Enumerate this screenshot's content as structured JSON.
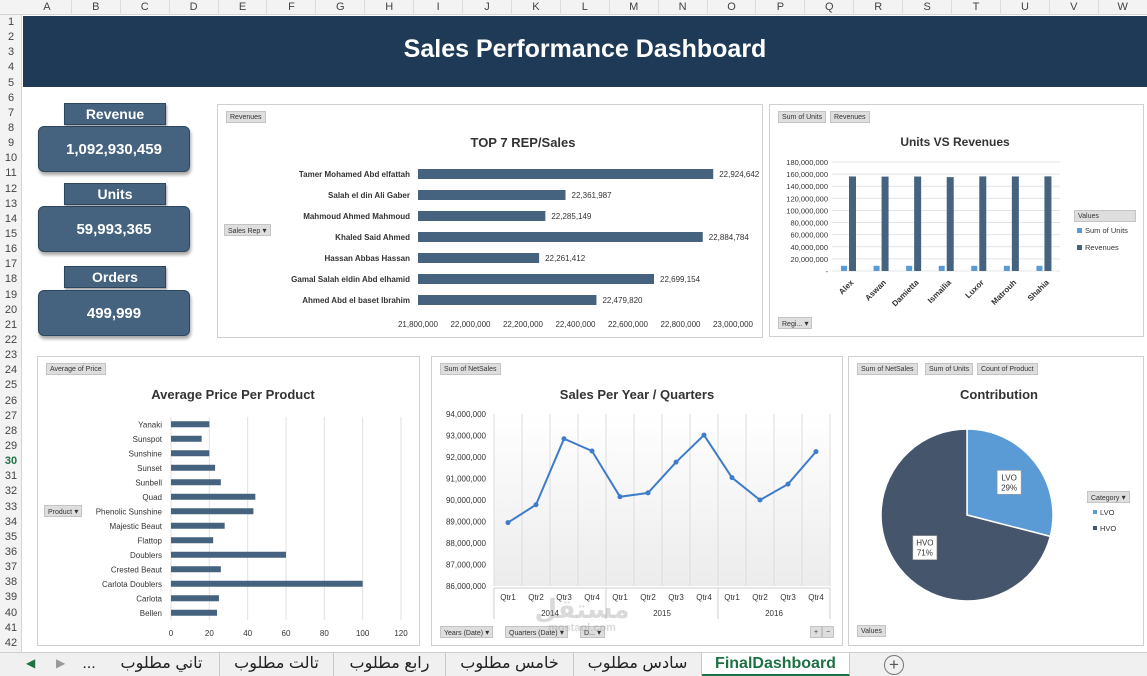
{
  "sheet": {
    "columns": [
      "A",
      "B",
      "C",
      "D",
      "E",
      "F",
      "G",
      "H",
      "I",
      "J",
      "K",
      "L",
      "M",
      "N",
      "O",
      "P",
      "Q",
      "R",
      "S",
      "T",
      "U",
      "V",
      "W"
    ],
    "rows": [
      1,
      2,
      3,
      4,
      5,
      6,
      7,
      8,
      9,
      10,
      11,
      12,
      13,
      14,
      15,
      16,
      17,
      18,
      19,
      20,
      21,
      22,
      23,
      24,
      25,
      26,
      27,
      28,
      29,
      30,
      31,
      32,
      33,
      34,
      35,
      36,
      37,
      38,
      39,
      40,
      41,
      42
    ],
    "selected_row": 30
  },
  "dashboard": {
    "title": "Sales Performance Dashboard",
    "kpis": [
      {
        "label": "Revenue",
        "value": "1,092,930,459"
      },
      {
        "label": "Units",
        "value": "59,993,365"
      },
      {
        "label": "Orders",
        "value": "499,999"
      }
    ]
  },
  "top_rep": {
    "pivot_value_btn": "Revenues",
    "pivot_axis_btn": "Sales Rep",
    "title": "TOP 7 REP/Sales",
    "chart_data": {
      "type": "bar",
      "orientation": "horizontal",
      "title": "TOP 7 REP/Sales",
      "categories": [
        "Tamer Mohamed Abd elfattah",
        "Salah el din Ali Gaber",
        "Mahmoud Ahmed Mahmoud",
        "Khaled Said Ahmed",
        "Hassan Abbas Hassan",
        "Gamal Salah eldin Abd elhamid",
        "Ahmed Abd el baset Ibrahim"
      ],
      "values": [
        22924642,
        22361987,
        22285149,
        22884784,
        22261412,
        22699154,
        22479820
      ],
      "value_labels": [
        "22,924,642",
        "22,361,987",
        "22,285,149",
        "22,884,784",
        "22,261,412",
        "22,699,154",
        "22,479,820"
      ],
      "xlim": [
        21800000,
        23000000
      ],
      "x_ticks": [
        "21,800,000",
        "22,000,000",
        "22,200,000",
        "22,400,000",
        "22,600,000",
        "22,800,000",
        "23,000,000"
      ],
      "color": "#45637f"
    }
  },
  "units_rev": {
    "pivot_btns": [
      "Sum of Units",
      "Revenues"
    ],
    "pivot_axis_btn": "Regi...",
    "title": "Units VS Revenues",
    "legend_title": "Values",
    "chart_data": {
      "type": "bar",
      "title": "Units VS Revenues",
      "categories": [
        "Alex",
        "Aswan",
        "Damietta",
        "Ismailia",
        "Luxor",
        "Matrouh",
        "Shahia"
      ],
      "series": [
        {
          "name": "Sum of Units",
          "color": "#5b9bd5",
          "values": [
            8570000,
            8570000,
            8570000,
            8570000,
            8570000,
            8570000,
            8570000
          ]
        },
        {
          "name": "Revenues",
          "color": "#45637f",
          "values": [
            156100000,
            155900000,
            156000000,
            155000000,
            156200000,
            156100000,
            156300000
          ]
        }
      ],
      "ylim": [
        0,
        180000000
      ],
      "y_ticks": [
        "-",
        "20,000,000",
        "40,000,000",
        "60,000,000",
        "80,000,000",
        "100,000,000",
        "120,000,000",
        "140,000,000",
        "160,000,000",
        "180,000,000"
      ],
      "legend": "right"
    }
  },
  "avg_price": {
    "pivot_value_btn": "Average of Price",
    "pivot_axis_btn": "Product",
    "title": "Average Price Per Product",
    "chart_data": {
      "type": "bar",
      "orientation": "horizontal",
      "title": "Average Price Per Product",
      "categories": [
        "Yanaki",
        "Sunspot",
        "Sunshine",
        "Sunset",
        "Sunbell",
        "Quad",
        "Phenolic Sunshine",
        "Majestic Beaut",
        "Flattop",
        "Doublers",
        "Crested Beaut",
        "Carlota Doublers",
        "Carlota",
        "Bellen"
      ],
      "values": [
        20,
        16,
        20,
        23,
        26,
        44,
        43,
        28,
        22,
        60,
        26,
        100,
        25,
        24
      ],
      "xlim": [
        0,
        120
      ],
      "x_ticks": [
        "0",
        "20",
        "40",
        "60",
        "80",
        "100",
        "120"
      ],
      "grid": true,
      "color": "#45637f"
    }
  },
  "sales_year": {
    "pivot_value_btn": "Sum of NetSales",
    "pivot_axis_btns": [
      "Years (Date)",
      "Quarters (Date)",
      "D..."
    ],
    "zoom_btns": [
      "+",
      "−"
    ],
    "title": "Sales Per Year / Quarters",
    "chart_data": {
      "type": "line",
      "title": "Sales Per Year / Quarters",
      "x": [
        "Qtr1",
        "Qtr2",
        "Qtr3",
        "Qtr4",
        "Qtr1",
        "Qtr2",
        "Qtr3",
        "Qtr4",
        "Qtr1",
        "Qtr2",
        "Qtr3",
        "Qtr4"
      ],
      "groups": [
        "2014",
        "2015",
        "2016"
      ],
      "values": [
        88950000,
        89780000,
        92850000,
        92280000,
        90150000,
        90330000,
        91760000,
        93020000,
        91040000,
        90000000,
        90740000,
        92250000
      ],
      "ylim": [
        86000000,
        94000000
      ],
      "y_ticks": [
        "86,000,000",
        "87,000,000",
        "88,000,000",
        "89,000,000",
        "90,000,000",
        "91,000,000",
        "92,000,000",
        "93,000,000",
        "94,000,000"
      ],
      "color": "#3e7cc9"
    }
  },
  "contribution": {
    "pivot_btns": [
      "Sum of NetSales",
      "Sum of Units",
      "Count of Product"
    ],
    "pivot_values_btn": "Values",
    "legend_title": "Category",
    "title": "Contribution",
    "chart_data": {
      "type": "pie",
      "title": "Contribution",
      "labels": [
        "LVO",
        "HVO"
      ],
      "values": [
        29,
        71
      ],
      "value_labels": [
        "29%",
        "71%"
      ],
      "colors": [
        "#5b9bd5",
        "#45556c"
      ],
      "legend": "right"
    }
  },
  "tabs": {
    "more": "...",
    "items": [
      "تاني مطلوب",
      "تالت مطلوب",
      "رابع مطلوب",
      "خامس مطلوب",
      "سادس مطلوب",
      "FinalDashboard"
    ],
    "active": "FinalDashboard",
    "add": "+"
  },
  "watermark": {
    "main": "مستقل",
    "sub": "mostaql.com"
  }
}
